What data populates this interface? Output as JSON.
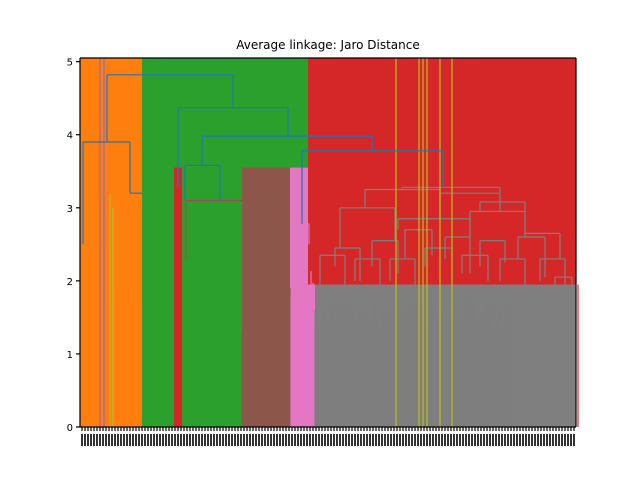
{
  "chart_data": {
    "type": "dendrogram",
    "title": "Average linkage: Jaro Distance",
    "xlabel": "",
    "ylabel": "",
    "ylim": [
      0,
      5.05
    ],
    "yticks": [
      0,
      1,
      2,
      3,
      4,
      5
    ],
    "ytick_labels": [
      "0",
      "1",
      "2",
      "3",
      "4",
      "5"
    ],
    "grid": false,
    "colors": {
      "orange": "#ff7f0e",
      "green": "#2ca02c",
      "red": "#d62728",
      "purple": "#9467bd",
      "brown": "#8c564b",
      "pink": "#e377c2",
      "gray": "#7f7f7f",
      "olive": "#bcbd22",
      "above_threshold": "#1f77b4"
    },
    "clusters": [
      {
        "color": "orange",
        "root_height": 3.9
      },
      {
        "color": "purple",
        "root_height": 5.05
      },
      {
        "color": "green",
        "root_height": 3.25
      },
      {
        "color": "red",
        "root_height": 3.28
      },
      {
        "color": "green",
        "root_height": 3.1
      },
      {
        "color": "brown",
        "root_height": 2.92
      },
      {
        "color": "pink",
        "root_height": 2.78
      },
      {
        "color": "gray",
        "root_height": 3.18
      },
      {
        "color": "red",
        "root_height": 5.05
      }
    ],
    "top_merges": [
      {
        "height": 4.82
      },
      {
        "height": 4.37
      },
      {
        "height": 3.98
      },
      {
        "height": 3.78
      },
      {
        "height": 3.58
      },
      {
        "height": 3.18
      },
      {
        "height": 2.5
      }
    ]
  }
}
